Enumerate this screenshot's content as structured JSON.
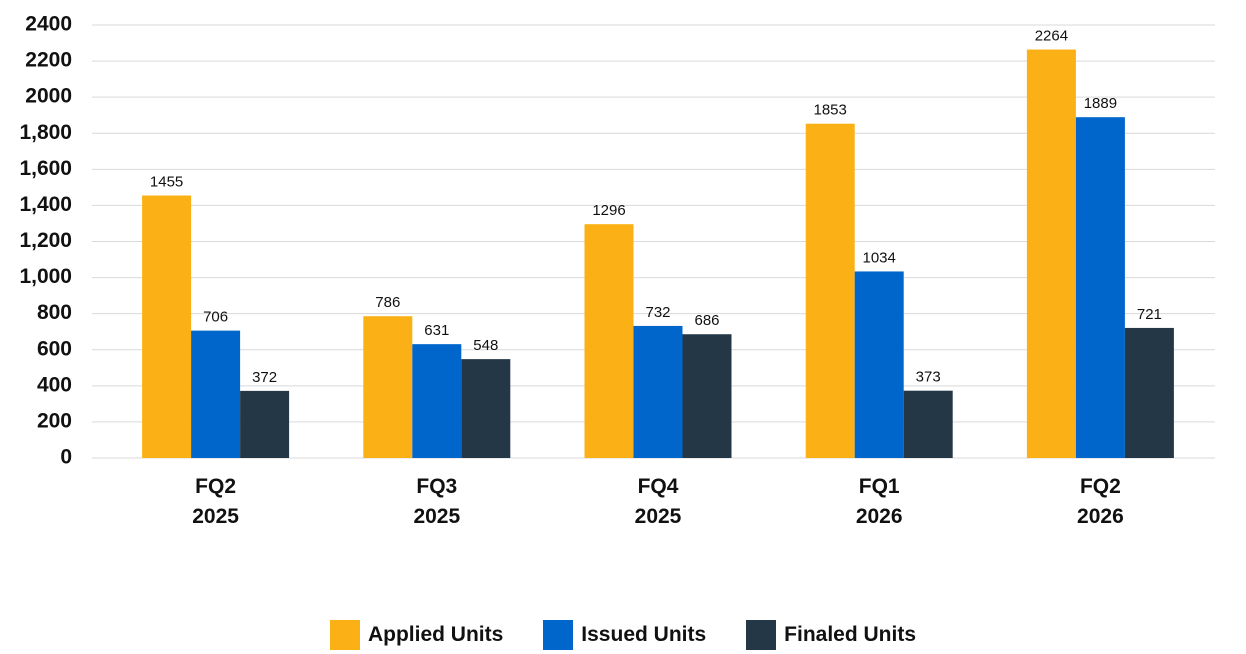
{
  "chart_data": {
    "type": "bar",
    "categories": [
      "FQ2 2025",
      "FQ3 2025",
      "FQ4 2025",
      "FQ1 2026",
      "FQ2 2026"
    ],
    "series": [
      {
        "name": "Applied Units",
        "color": "#fbb116",
        "values": [
          1455,
          786,
          1296,
          1853,
          2264
        ]
      },
      {
        "name": "Issued Units",
        "color": "#0066cc",
        "values": [
          706,
          631,
          732,
          1034,
          1889
        ]
      },
      {
        "name": "Finaled Units",
        "color": "#243746",
        "values": [
          372,
          548,
          686,
          373,
          721
        ]
      }
    ],
    "ylim": [
      0,
      2400
    ],
    "yticks": [
      0,
      200,
      400,
      600,
      800,
      {
        "value": 1000,
        "label": "1,000"
      },
      {
        "value": 1200,
        "label": "1,200"
      },
      {
        "value": 1400,
        "label": "1,400"
      },
      {
        "value": 1600,
        "label": "1,600"
      },
      {
        "value": 1800,
        "label": "1,800"
      },
      2000,
      2200,
      2400
    ],
    "grid": true,
    "legend": "bottom"
  }
}
